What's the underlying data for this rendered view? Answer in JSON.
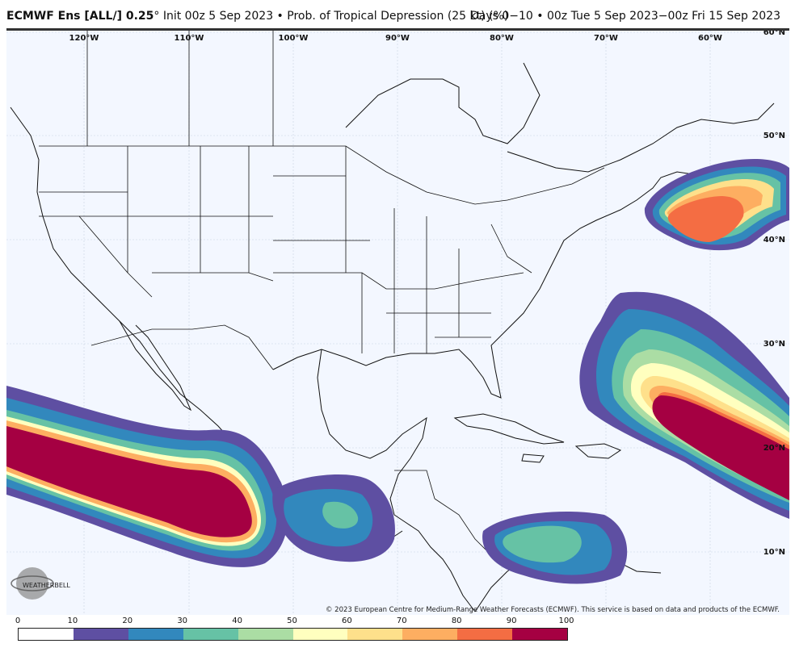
{
  "header": {
    "model": "ECMWF Ens [ALL/] 0.25",
    "degree": "°",
    "title_rest": " Init 00z 5 Sep 2023 • Prob. of Tropical Depression (25 kt) (%)",
    "valid": "Days 0−10 • 00z Tue 5 Sep 2023−00z Fri 15 Sep 2023"
  },
  "map": {
    "lon_labels": [
      "120°W",
      "110°W",
      "100°W",
      "90°W",
      "80°W",
      "70°W",
      "60°W"
    ],
    "lat_labels": [
      "60°N",
      "50°N",
      "40°N",
      "30°N",
      "20°N",
      "10°N"
    ],
    "credit": "© 2023 European Centre for Medium-Range Weather Forecasts (ECMWF). This service is based on data and products of the ECMWF.",
    "logo_text": "WEATHERBELL",
    "features": [
      {
        "name": "Probability area - eastern Pacific",
        "max_percent": 100
      },
      {
        "name": "Probability area - central Atlantic",
        "max_percent": 100
      },
      {
        "name": "Probability area - off New England / Canada",
        "max_percent": 80
      },
      {
        "name": "Probability area - southern Caribbean",
        "max_percent": 40
      },
      {
        "name": "Probability area - Gulf of Tehuantepec",
        "max_percent": 40
      }
    ]
  },
  "colorbar": {
    "ticks": [
      "0",
      "10",
      "20",
      "30",
      "40",
      "50",
      "60",
      "70",
      "80",
      "90",
      "100"
    ],
    "colors": [
      "#ffffff",
      "#5e4fa2",
      "#3288bd",
      "#66c2a5",
      "#abdda4",
      "#ffffbf",
      "#fee08b",
      "#fdae61",
      "#f46d43",
      "#a50042"
    ]
  }
}
